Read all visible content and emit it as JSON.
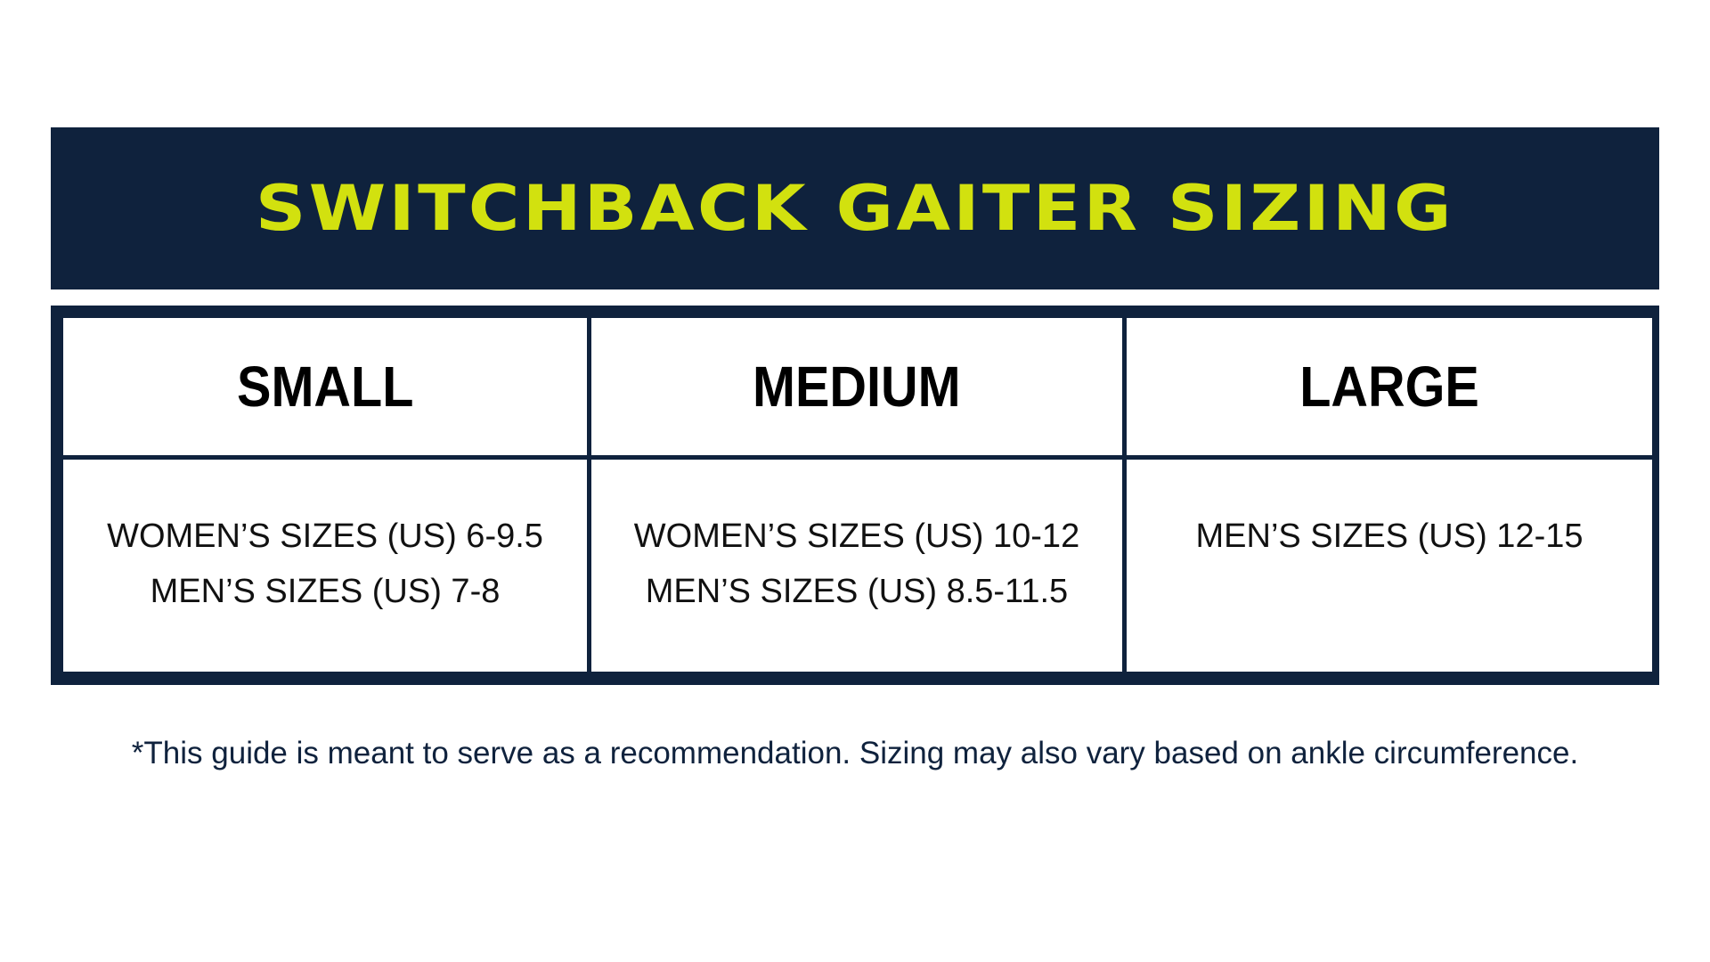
{
  "title": "SWITCHBACK GAITER SIZING",
  "colors": {
    "navy": "#0f223d",
    "accent": "#d2e10f"
  },
  "columns": [
    {
      "header": "SMALL",
      "lines": [
        "WOMEN’S SIZES (US) 6-9.5",
        "MEN’S SIZES (US) 7-8"
      ]
    },
    {
      "header": "MEDIUM",
      "lines": [
        "WOMEN’S SIZES (US) 10-12",
        "MEN’S SIZES (US) 8.5-11.5"
      ]
    },
    {
      "header": "LARGE",
      "lines": [
        "MEN’S SIZES (US) 12-15"
      ]
    }
  ],
  "footnote": "*This guide is meant to serve as a recommendation. Sizing may also vary based on ankle circumference."
}
